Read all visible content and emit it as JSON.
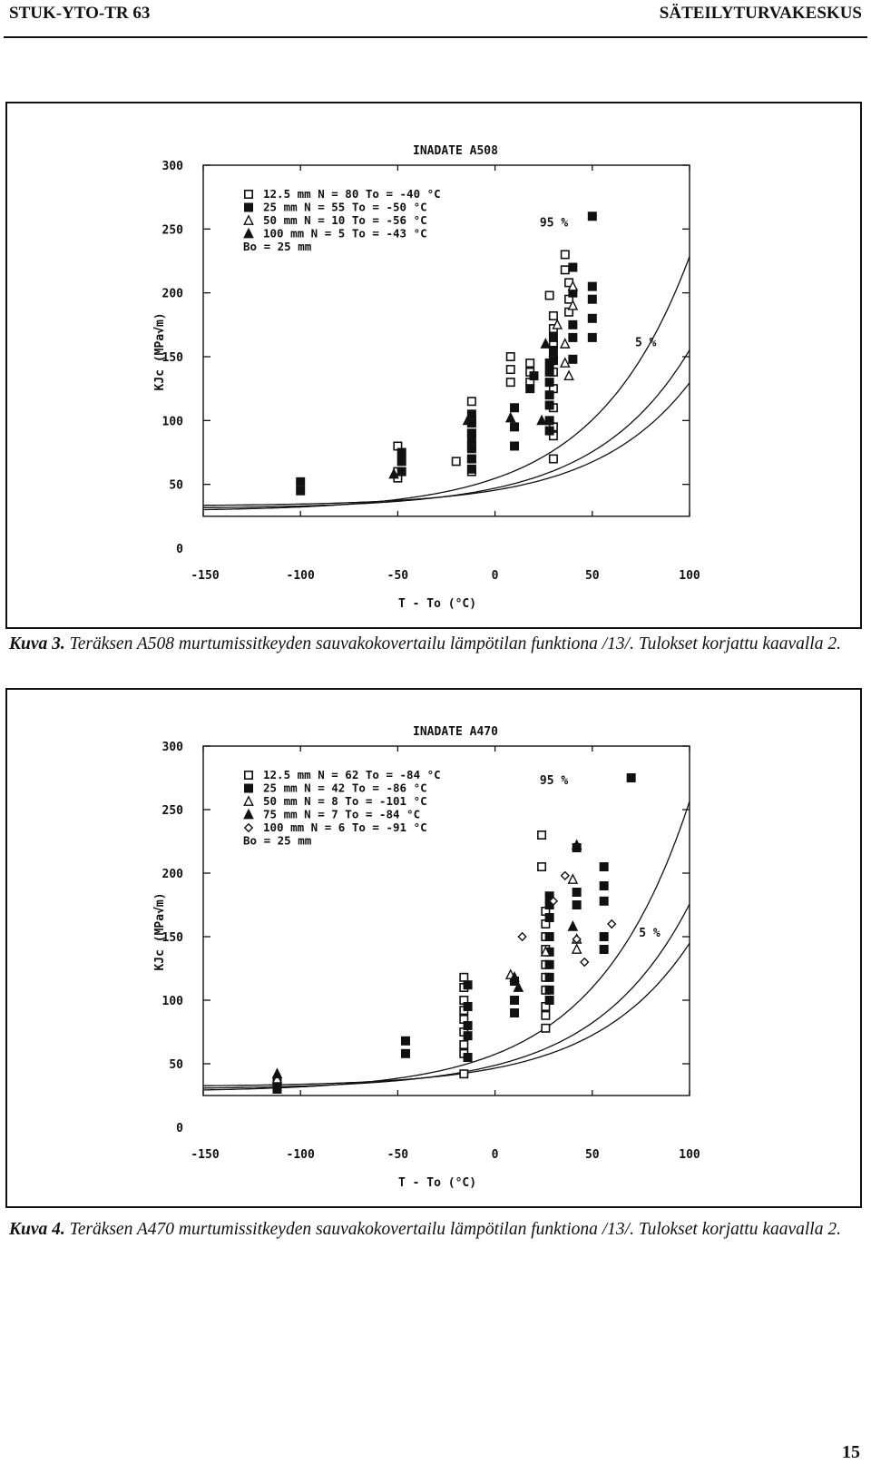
{
  "header": {
    "left": "STUK-YTO-TR 63",
    "right": "SÄTEILYTURVAKESKUS"
  },
  "page_number": "15",
  "figures": [
    {
      "caption_label": "Kuva 3.",
      "caption_text": " Teräksen A508 murtumissitkeyden sauvakokovertailu lämpötilan funktiona /13/. Tulokset korjattu kaavalla 2."
    },
    {
      "caption_label": "Kuva 4.",
      "caption_text": " Teräksen A470 murtumissitkeyden sauvakokovertailu lämpötilan funktiona /13/. Tulokset korjattu kaavalla 2."
    }
  ],
  "chart_data": [
    {
      "type": "scatter",
      "title": "INADATE A508",
      "xlabel": "T - To (°C)",
      "ylabel": "KJc (MPa√m)",
      "xlim": [
        -150,
        100
      ],
      "ylim": [
        0,
        300
      ],
      "x_ticks": [
        -150,
        -100,
        -50,
        0,
        50,
        100
      ],
      "x_tick_labels": [
        "-150",
        "-100",
        "-50",
        "0",
        "50",
        "100"
      ],
      "y_ticks": [
        0,
        50,
        100,
        150,
        200,
        250,
        300
      ],
      "y_tick_labels": [
        "0",
        "50",
        "100",
        "150",
        "200",
        "250",
        "300"
      ],
      "curve_labels": [
        "95 %",
        "5 %"
      ],
      "legend": [
        {
          "marker": "open-square",
          "text": "12.5 mm  N = 80  To = -40 °C"
        },
        {
          "marker": "filled-square",
          "text": "25 mm    N = 55  To = -50 °C"
        },
        {
          "marker": "open-triangle",
          "text": "50 mm    N = 10  To = -56 °C"
        },
        {
          "marker": "filled-triangle",
          "text": "100 mm   N = 5   To = -43 °C"
        },
        {
          "marker": "none",
          "text": "Bo = 25 mm"
        }
      ],
      "series": [
        {
          "name": "12.5 mm",
          "marker": "open-square",
          "points": [
            [
              -50,
              80
            ],
            [
              -50,
              60
            ],
            [
              -50,
              55
            ],
            [
              -20,
              68
            ],
            [
              -12,
              115
            ],
            [
              -12,
              100
            ],
            [
              -12,
              90
            ],
            [
              -12,
              80
            ],
            [
              -12,
              70
            ],
            [
              -12,
              60
            ],
            [
              8,
              150
            ],
            [
              8,
              140
            ],
            [
              8,
              130
            ],
            [
              18,
              145
            ],
            [
              18,
              138
            ],
            [
              18,
              130
            ],
            [
              28,
              198
            ],
            [
              30,
              182
            ],
            [
              30,
              172
            ],
            [
              30,
              160
            ],
            [
              30,
              148
            ],
            [
              30,
              138
            ],
            [
              30,
              125
            ],
            [
              30,
              110
            ],
            [
              30,
              95
            ],
            [
              30,
              88
            ],
            [
              30,
              70
            ],
            [
              36,
              230
            ],
            [
              36,
              218
            ],
            [
              38,
              208
            ],
            [
              38,
              195
            ],
            [
              38,
              185
            ]
          ]
        },
        {
          "name": "25 mm",
          "marker": "filled-square",
          "points": [
            [
              -100,
              52
            ],
            [
              -100,
              45
            ],
            [
              -48,
              75
            ],
            [
              -48,
              68
            ],
            [
              -48,
              60
            ],
            [
              -12,
              105
            ],
            [
              -12,
              98
            ],
            [
              -12,
              90
            ],
            [
              -12,
              85
            ],
            [
              -12,
              78
            ],
            [
              -12,
              70
            ],
            [
              -12,
              62
            ],
            [
              10,
              110
            ],
            [
              10,
              95
            ],
            [
              10,
              80
            ],
            [
              18,
              125
            ],
            [
              20,
              135
            ],
            [
              28,
              145
            ],
            [
              28,
              138
            ],
            [
              28,
              130
            ],
            [
              28,
              120
            ],
            [
              28,
              112
            ],
            [
              28,
              100
            ],
            [
              28,
              92
            ],
            [
              30,
              165
            ],
            [
              30,
              155
            ],
            [
              30,
              147
            ],
            [
              40,
              148
            ],
            [
              40,
              165
            ],
            [
              40,
              175
            ],
            [
              40,
              220
            ],
            [
              40,
              200
            ],
            [
              50,
              260
            ],
            [
              50,
              205
            ],
            [
              50,
              195
            ],
            [
              50,
              180
            ],
            [
              50,
              165
            ]
          ]
        },
        {
          "name": "50 mm",
          "marker": "open-triangle",
          "points": [
            [
              32,
              175
            ],
            [
              36,
              160
            ],
            [
              36,
              145
            ],
            [
              38,
              135
            ],
            [
              40,
              190
            ],
            [
              40,
              205
            ]
          ]
        },
        {
          "name": "100 mm",
          "marker": "filled-triangle",
          "points": [
            [
              -52,
              58
            ],
            [
              -14,
              100
            ],
            [
              8,
              102
            ],
            [
              24,
              100
            ],
            [
              26,
              160
            ]
          ]
        }
      ]
    },
    {
      "type": "scatter",
      "title": "INADATE A470",
      "xlabel": "T - To (°C)",
      "ylabel": "KJc (MPa√m)",
      "xlim": [
        -150,
        100
      ],
      "ylim": [
        0,
        300
      ],
      "x_ticks": [
        -150,
        -100,
        -50,
        0,
        50,
        100
      ],
      "x_tick_labels": [
        "-150",
        "-100",
        "-50",
        "0",
        "50",
        "100"
      ],
      "y_ticks": [
        0,
        50,
        100,
        150,
        200,
        250,
        300
      ],
      "y_tick_labels": [
        "0",
        "50",
        "100",
        "150",
        "200",
        "250",
        "300"
      ],
      "curve_labels": [
        "95 %",
        "5 %"
      ],
      "legend": [
        {
          "marker": "open-square",
          "text": "12.5 mm  N = 62  To = -84 °C"
        },
        {
          "marker": "filled-square",
          "text": "25 mm    N = 42  To = -86 °C"
        },
        {
          "marker": "open-triangle",
          "text": "50 mm    N = 8   To = -101 °C"
        },
        {
          "marker": "filled-triangle",
          "text": "75 mm    N = 7   To = -84 °C"
        },
        {
          "marker": "open-diamond",
          "text": "100 mm   N = 6   To = -91 °C"
        },
        {
          "marker": "none",
          "text": "Bo = 25 mm"
        }
      ],
      "series": [
        {
          "name": "12.5 mm",
          "marker": "open-square",
          "points": [
            [
              -16,
              118
            ],
            [
              -16,
              110
            ],
            [
              -16,
              100
            ],
            [
              -16,
              92
            ],
            [
              -16,
              85
            ],
            [
              -16,
              75
            ],
            [
              -16,
              65
            ],
            [
              -16,
              58
            ],
            [
              -16,
              42
            ],
            [
              24,
              230
            ],
            [
              24,
              205
            ],
            [
              26,
              170
            ],
            [
              26,
              160
            ],
            [
              26,
              150
            ],
            [
              26,
              140
            ],
            [
              26,
              128
            ],
            [
              26,
              118
            ],
            [
              26,
              108
            ],
            [
              26,
              95
            ],
            [
              26,
              88
            ],
            [
              26,
              78
            ]
          ]
        },
        {
          "name": "25 mm",
          "marker": "filled-square",
          "points": [
            [
              -112,
              35
            ],
            [
              -112,
              30
            ],
            [
              -46,
              68
            ],
            [
              -46,
              58
            ],
            [
              -14,
              112
            ],
            [
              -14,
              95
            ],
            [
              -14,
              80
            ],
            [
              -14,
              72
            ],
            [
              -14,
              55
            ],
            [
              10,
              115
            ],
            [
              10,
              100
            ],
            [
              10,
              90
            ],
            [
              28,
              182
            ],
            [
              28,
              175
            ],
            [
              28,
              165
            ],
            [
              28,
              150
            ],
            [
              28,
              138
            ],
            [
              28,
              128
            ],
            [
              28,
              118
            ],
            [
              28,
              108
            ],
            [
              28,
              100
            ],
            [
              42,
              220
            ],
            [
              42,
              185
            ],
            [
              42,
              175
            ],
            [
              56,
              205
            ],
            [
              56,
              190
            ],
            [
              56,
              178
            ],
            [
              56,
              150
            ],
            [
              56,
              140
            ],
            [
              70,
              275
            ]
          ]
        },
        {
          "name": "50 mm",
          "marker": "open-triangle",
          "points": [
            [
              -112,
              38
            ],
            [
              8,
              120
            ],
            [
              26,
              138
            ],
            [
              40,
              195
            ],
            [
              42,
              148
            ],
            [
              42,
              140
            ]
          ]
        },
        {
          "name": "75 mm",
          "marker": "filled-triangle",
          "points": [
            [
              -112,
              42
            ],
            [
              10,
              118
            ],
            [
              12,
              110
            ],
            [
              40,
              158
            ],
            [
              42,
              222
            ]
          ]
        },
        {
          "name": "100 mm",
          "marker": "open-diamond",
          "points": [
            [
              14,
              150
            ],
            [
              30,
              178
            ],
            [
              36,
              198
            ],
            [
              42,
              148
            ],
            [
              46,
              130
            ],
            [
              60,
              160
            ]
          ]
        }
      ]
    }
  ]
}
